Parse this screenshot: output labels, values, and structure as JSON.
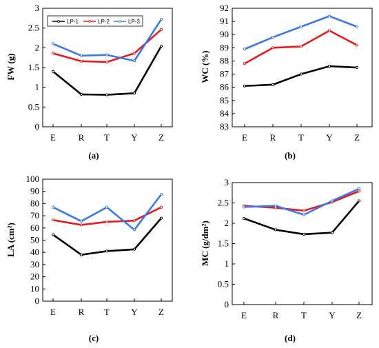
{
  "figure": {
    "legend_placement": "top-left, inside panel (a)"
  },
  "chart_data": [
    {
      "type": "line",
      "panel_label": "(a)",
      "ylabel": "FW (g)",
      "xlabel": "",
      "categories": [
        "E",
        "R",
        "T",
        "Y",
        "Z"
      ],
      "ylim": [
        0,
        3
      ],
      "yticks": [
        0,
        0.5,
        1,
        1.5,
        2,
        2.5,
        3
      ],
      "ytick_labels": [
        "0",
        "0.5",
        "1",
        "1.5",
        "2",
        "2.5",
        "3"
      ],
      "grid": false,
      "legend": true,
      "series": [
        {
          "name": "LP-1",
          "color": "#000000",
          "values": [
            1.4,
            0.82,
            0.81,
            0.85,
            2.04
          ]
        },
        {
          "name": "LP-2",
          "color": "#e8191c",
          "values": [
            1.86,
            1.66,
            1.64,
            1.86,
            2.46
          ]
        },
        {
          "name": "LP-3",
          "color": "#3b78e7",
          "values": [
            2.1,
            1.8,
            1.82,
            1.67,
            2.72
          ]
        }
      ]
    },
    {
      "type": "line",
      "panel_label": "(b)",
      "ylabel": "WC (%)",
      "xlabel": "",
      "categories": [
        "E",
        "R",
        "T",
        "Y",
        "Z"
      ],
      "ylim": [
        83,
        92
      ],
      "yticks": [
        83,
        84,
        85,
        86,
        87,
        88,
        89,
        90,
        91,
        92
      ],
      "ytick_labels": [
        "83",
        "84",
        "85",
        "86",
        "87",
        "88",
        "89",
        "90",
        "91",
        "92"
      ],
      "grid": false,
      "legend": false,
      "series": [
        {
          "color": "#000000",
          "values": [
            86.1,
            86.2,
            87.0,
            87.6,
            87.5
          ]
        },
        {
          "color": "#e8191c",
          "values": [
            87.8,
            89.0,
            89.1,
            90.3,
            89.2
          ]
        },
        {
          "color": "#3b78e7",
          "values": [
            88.9,
            89.8,
            90.6,
            91.4,
            90.6
          ]
        }
      ]
    },
    {
      "type": "line",
      "panel_label": "(c)",
      "ylabel": "LA (cm²)",
      "xlabel": "",
      "categories": [
        "E",
        "R",
        "T",
        "Y",
        "Z"
      ],
      "ylim": [
        0,
        100
      ],
      "yticks": [
        0,
        10,
        20,
        30,
        40,
        50,
        60,
        70,
        80,
        90,
        100
      ],
      "ytick_labels": [
        "0",
        "10",
        "20",
        "30",
        "40",
        "50",
        "60",
        "70",
        "80",
        "90",
        "100"
      ],
      "grid": false,
      "legend": false,
      "series": [
        {
          "color": "#000000",
          "values": [
            54.5,
            38.0,
            41.0,
            42.5,
            68.0
          ]
        },
        {
          "color": "#e8191c",
          "values": [
            66.5,
            62.5,
            65.0,
            66.0,
            77.0
          ]
        },
        {
          "color": "#3b78e7",
          "values": [
            77.0,
            65.5,
            77.0,
            58.5,
            87.5
          ]
        }
      ]
    },
    {
      "type": "line",
      "panel_label": "(d)",
      "ylabel": "MC (g/dm²)",
      "xlabel": "",
      "categories": [
        "E",
        "R",
        "T",
        "Y",
        "Z"
      ],
      "ylim": [
        0,
        3
      ],
      "yticks": [
        0,
        0.5,
        1,
        1.5,
        2,
        2.5,
        3
      ],
      "ytick_labels": [
        "0",
        "0.5",
        "1",
        "1.5",
        "2",
        "2.5",
        "3"
      ],
      "grid": false,
      "legend": false,
      "series": [
        {
          "color": "#000000",
          "values": [
            2.12,
            1.84,
            1.73,
            1.77,
            2.55
          ]
        },
        {
          "color": "#e8191c",
          "values": [
            2.43,
            2.38,
            2.31,
            2.52,
            2.79
          ]
        },
        {
          "color": "#3b78e7",
          "values": [
            2.4,
            2.43,
            2.21,
            2.55,
            2.85
          ]
        }
      ]
    }
  ]
}
